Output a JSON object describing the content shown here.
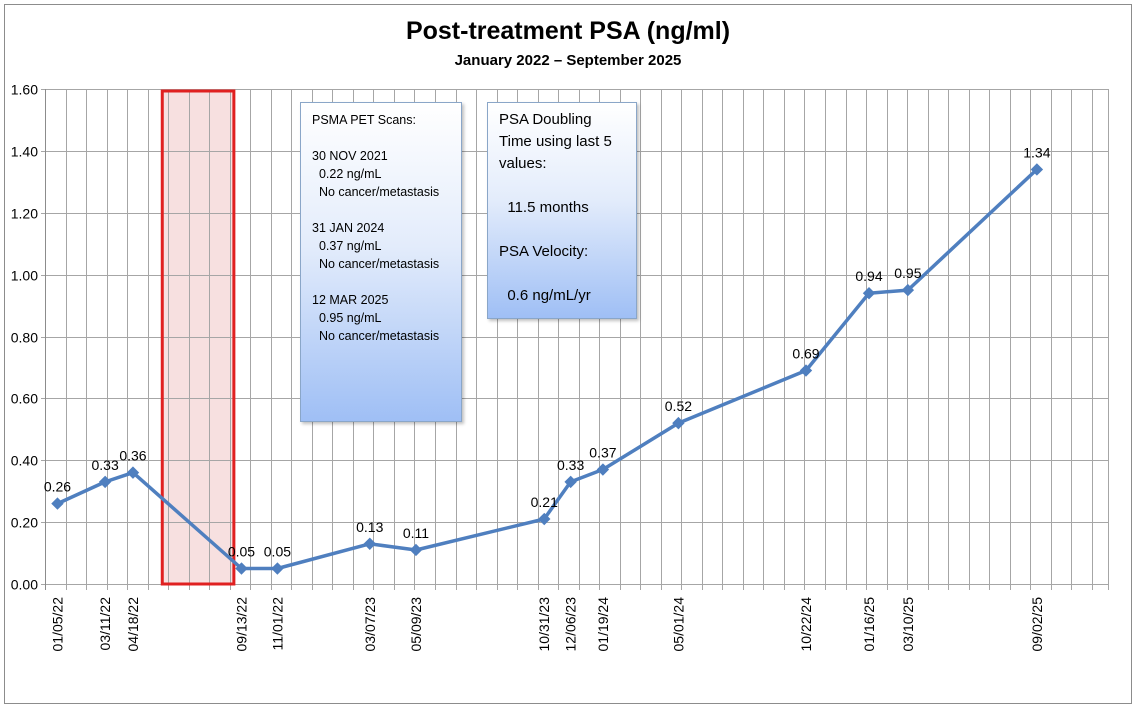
{
  "chart_data": {
    "type": "line",
    "title": "Post-treatment PSA (ng/ml)",
    "subtitle": "January 2022 – September 2025",
    "ylim": [
      0,
      1.6
    ],
    "yticks": [
      "0.00",
      "0.20",
      "0.40",
      "0.60",
      "0.80",
      "1.00",
      "1.20",
      "1.40",
      "1.60"
    ],
    "grid": true,
    "series": [
      {
        "color": "#4f7fbf",
        "x": [
          "01/05/22",
          "03/11/22",
          "04/18/22",
          "09/13/22",
          "11/01/22",
          "03/07/23",
          "05/09/23",
          "10/31/23",
          "12/06/23",
          "01/19/24",
          "05/01/24",
          "10/22/24",
          "01/16/25",
          "03/10/25",
          "09/02/25"
        ],
        "values": [
          0.26,
          0.33,
          0.36,
          0.05,
          0.05,
          0.13,
          0.11,
          0.21,
          0.33,
          0.37,
          0.52,
          0.69,
          0.94,
          0.95,
          1.34
        ],
        "labels": [
          "0.26",
          "0.33",
          "0.36",
          "0.05",
          "0.05",
          "0.13",
          "0.11",
          "0.21",
          "0.33",
          "0.37",
          "0.52",
          "0.69",
          "0.94",
          "0.95",
          "1.34"
        ]
      }
    ],
    "highlight": {
      "from": "04/18/22",
      "to": "09/13/22",
      "border_color": "#e02020",
      "fill_color": "#f7e0e0"
    }
  },
  "annotations": {
    "pet_scans": [
      "PSMA PET Scans:",
      "",
      "30 NOV 2021",
      "  0.22 ng/mL",
      "  No cancer/metastasis",
      "",
      "31 JAN 2024",
      "  0.37 ng/mL",
      "  No cancer/metastasis",
      "",
      "12 MAR 2025",
      "  0.95 ng/mL",
      "  No cancer/metastasis"
    ],
    "doubling": [
      "PSA Doubling",
      "Time using last 5",
      "values:",
      "",
      "  11.5 months",
      "",
      "PSA Velocity:",
      "",
      "  0.6 ng/mL/yr"
    ]
  }
}
